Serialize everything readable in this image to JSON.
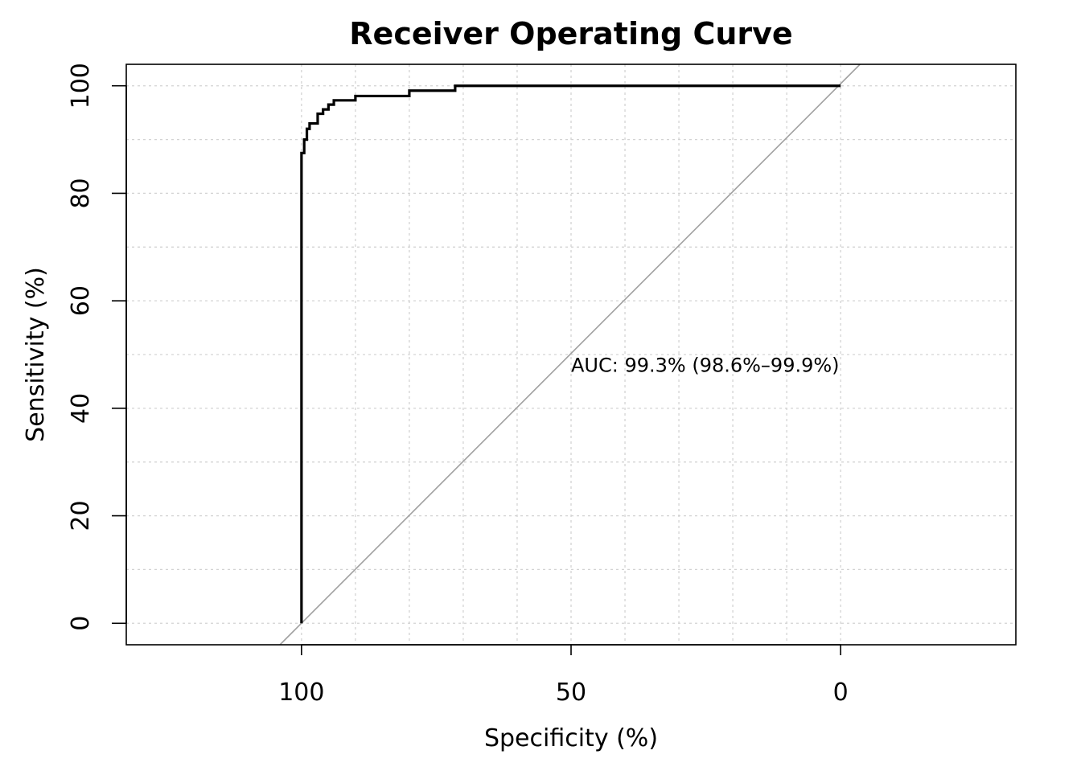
{
  "chart_data": {
    "type": "line",
    "title": "Receiver Operating Curve",
    "xlabel": "Specificity (%)",
    "ylabel": "Sensitivity (%)",
    "x_reversed": true,
    "xlim": [
      132.5,
      -32.5
    ],
    "ylim": [
      -4,
      104
    ],
    "xticks": [
      100,
      50,
      0
    ],
    "xtick_labels": [
      "100",
      "50",
      "0"
    ],
    "yticks": [
      0,
      20,
      40,
      60,
      80,
      100
    ],
    "ytick_labels": [
      "0",
      "20",
      "40",
      "60",
      "80",
      "100"
    ],
    "grid": true,
    "grid_style": "dotted",
    "grid_x": [
      100,
      90,
      80,
      70,
      60,
      50,
      40,
      30,
      20,
      10,
      0
    ],
    "grid_y": [
      0,
      10,
      20,
      30,
      40,
      50,
      60,
      70,
      80,
      90,
      100
    ],
    "legend": "none",
    "series": [
      {
        "color": "#000000",
        "step": true,
        "points": [
          [
            100,
            0
          ],
          [
            100,
            87.5
          ],
          [
            99.5,
            87.5
          ],
          [
            99.5,
            90
          ],
          [
            99,
            90
          ],
          [
            99,
            92
          ],
          [
            98.5,
            92
          ],
          [
            98.5,
            93
          ],
          [
            97,
            93
          ],
          [
            97,
            94.8
          ],
          [
            96,
            94.8
          ],
          [
            96,
            95.6
          ],
          [
            95,
            95.6
          ],
          [
            95,
            96.5
          ],
          [
            94,
            96.5
          ],
          [
            94,
            97.3
          ],
          [
            90,
            97.3
          ],
          [
            90,
            98.1
          ],
          [
            80,
            98.1
          ],
          [
            80,
            99.1
          ],
          [
            71.5,
            99.1
          ],
          [
            71.5,
            100
          ],
          [
            0,
            100
          ]
        ]
      }
    ],
    "reference_line": {
      "color": "#a0a0a0",
      "from": [
        104,
        -4
      ],
      "to": [
        -3.6,
        104
      ]
    },
    "annotations": [
      {
        "text": "AUC: 99.3% (98.6%–99.9%)",
        "x": 50,
        "y": 48
      }
    ]
  }
}
